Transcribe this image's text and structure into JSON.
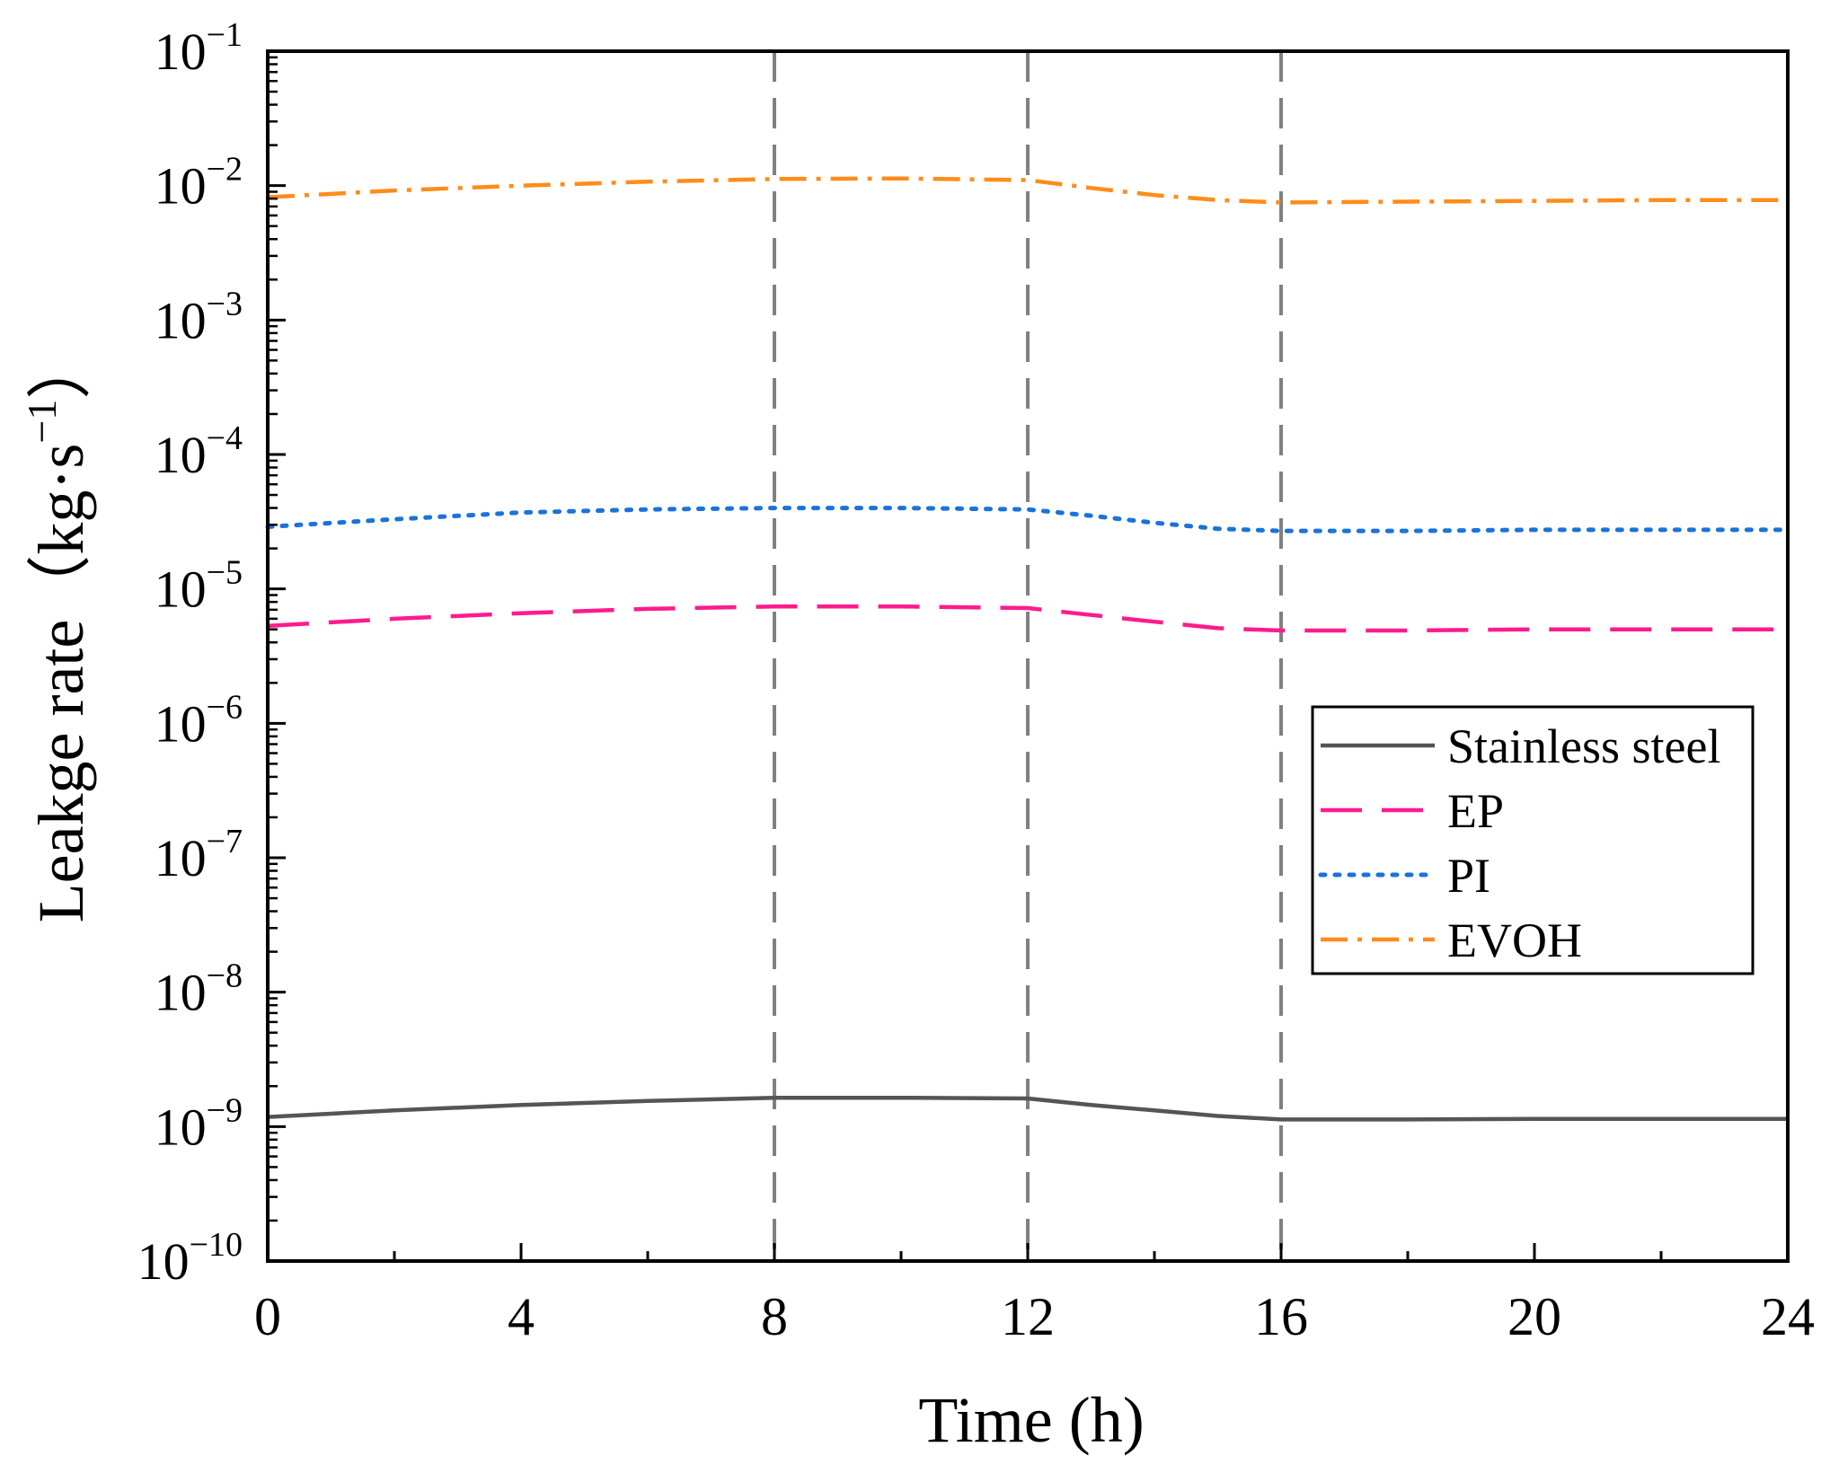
{
  "chart_data": {
    "type": "line",
    "title": "",
    "xlabel": "Time (h)",
    "ylabel": "Leakge rate（kg·s",
    "ylabel_sup": "−1",
    "ylabel_close": "）",
    "xscale": "linear",
    "yscale": "log",
    "xlim": [
      0,
      24
    ],
    "ylim_exp": [
      -10,
      -1
    ],
    "xticks": [
      0,
      4,
      8,
      12,
      16,
      20,
      24
    ],
    "xtick_labels": [
      "0",
      "4",
      "8",
      "12",
      "16",
      "20",
      "24"
    ],
    "xminor_ticks": [
      2,
      6,
      10,
      14,
      18,
      22
    ],
    "ytick_exps": [
      -10,
      -9,
      -8,
      -7,
      -6,
      -5,
      -4,
      -3,
      -2,
      -1
    ],
    "ytick_base": "10",
    "ytick_sups": [
      "−10",
      "−9",
      "−8",
      "−7",
      "−6",
      "−5",
      "−4",
      "−3",
      "−2",
      "−1"
    ],
    "vlines": [
      8,
      12,
      16
    ],
    "grid": false,
    "legend_position": "right-middle",
    "x": [
      0,
      2,
      4,
      6,
      8,
      10,
      12,
      13,
      14,
      15,
      16,
      18,
      20,
      22,
      24
    ],
    "series": [
      {
        "name": "Stainless steel",
        "style": "solid",
        "color": "#555555",
        "values": [
          1.18e-09,
          1.32e-09,
          1.45e-09,
          1.55e-09,
          1.64e-09,
          1.64e-09,
          1.62e-09,
          1.45e-09,
          1.32e-09,
          1.2e-09,
          1.13e-09,
          1.13e-09,
          1.14e-09,
          1.14e-09,
          1.14e-09
        ]
      },
      {
        "name": "EP",
        "style": "dashed",
        "color": "#ff1b8d",
        "values": [
          5.3e-06,
          6e-06,
          6.6e-06,
          7.1e-06,
          7.4e-06,
          7.4e-06,
          7.2e-06,
          6.4e-06,
          5.7e-06,
          5.1e-06,
          4.9e-06,
          4.9e-06,
          5e-06,
          5e-06,
          5e-06
        ]
      },
      {
        "name": "PI",
        "style": "dotted",
        "color": "#1a73d9",
        "values": [
          2.9e-05,
          3.3e-05,
          3.7e-05,
          3.9e-05,
          4e-05,
          4e-05,
          3.9e-05,
          3.5e-05,
          3.1e-05,
          2.8e-05,
          2.7e-05,
          2.7e-05,
          2.75e-05,
          2.75e-05,
          2.75e-05
        ]
      },
      {
        "name": "EVOH",
        "style": "dashdot",
        "color": "#ff8c1a",
        "values": [
          0.0082,
          0.0092,
          0.01,
          0.0107,
          0.0112,
          0.0113,
          0.011,
          0.0096,
          0.0085,
          0.0078,
          0.0075,
          0.0076,
          0.0077,
          0.0078,
          0.0078
        ]
      }
    ]
  }
}
